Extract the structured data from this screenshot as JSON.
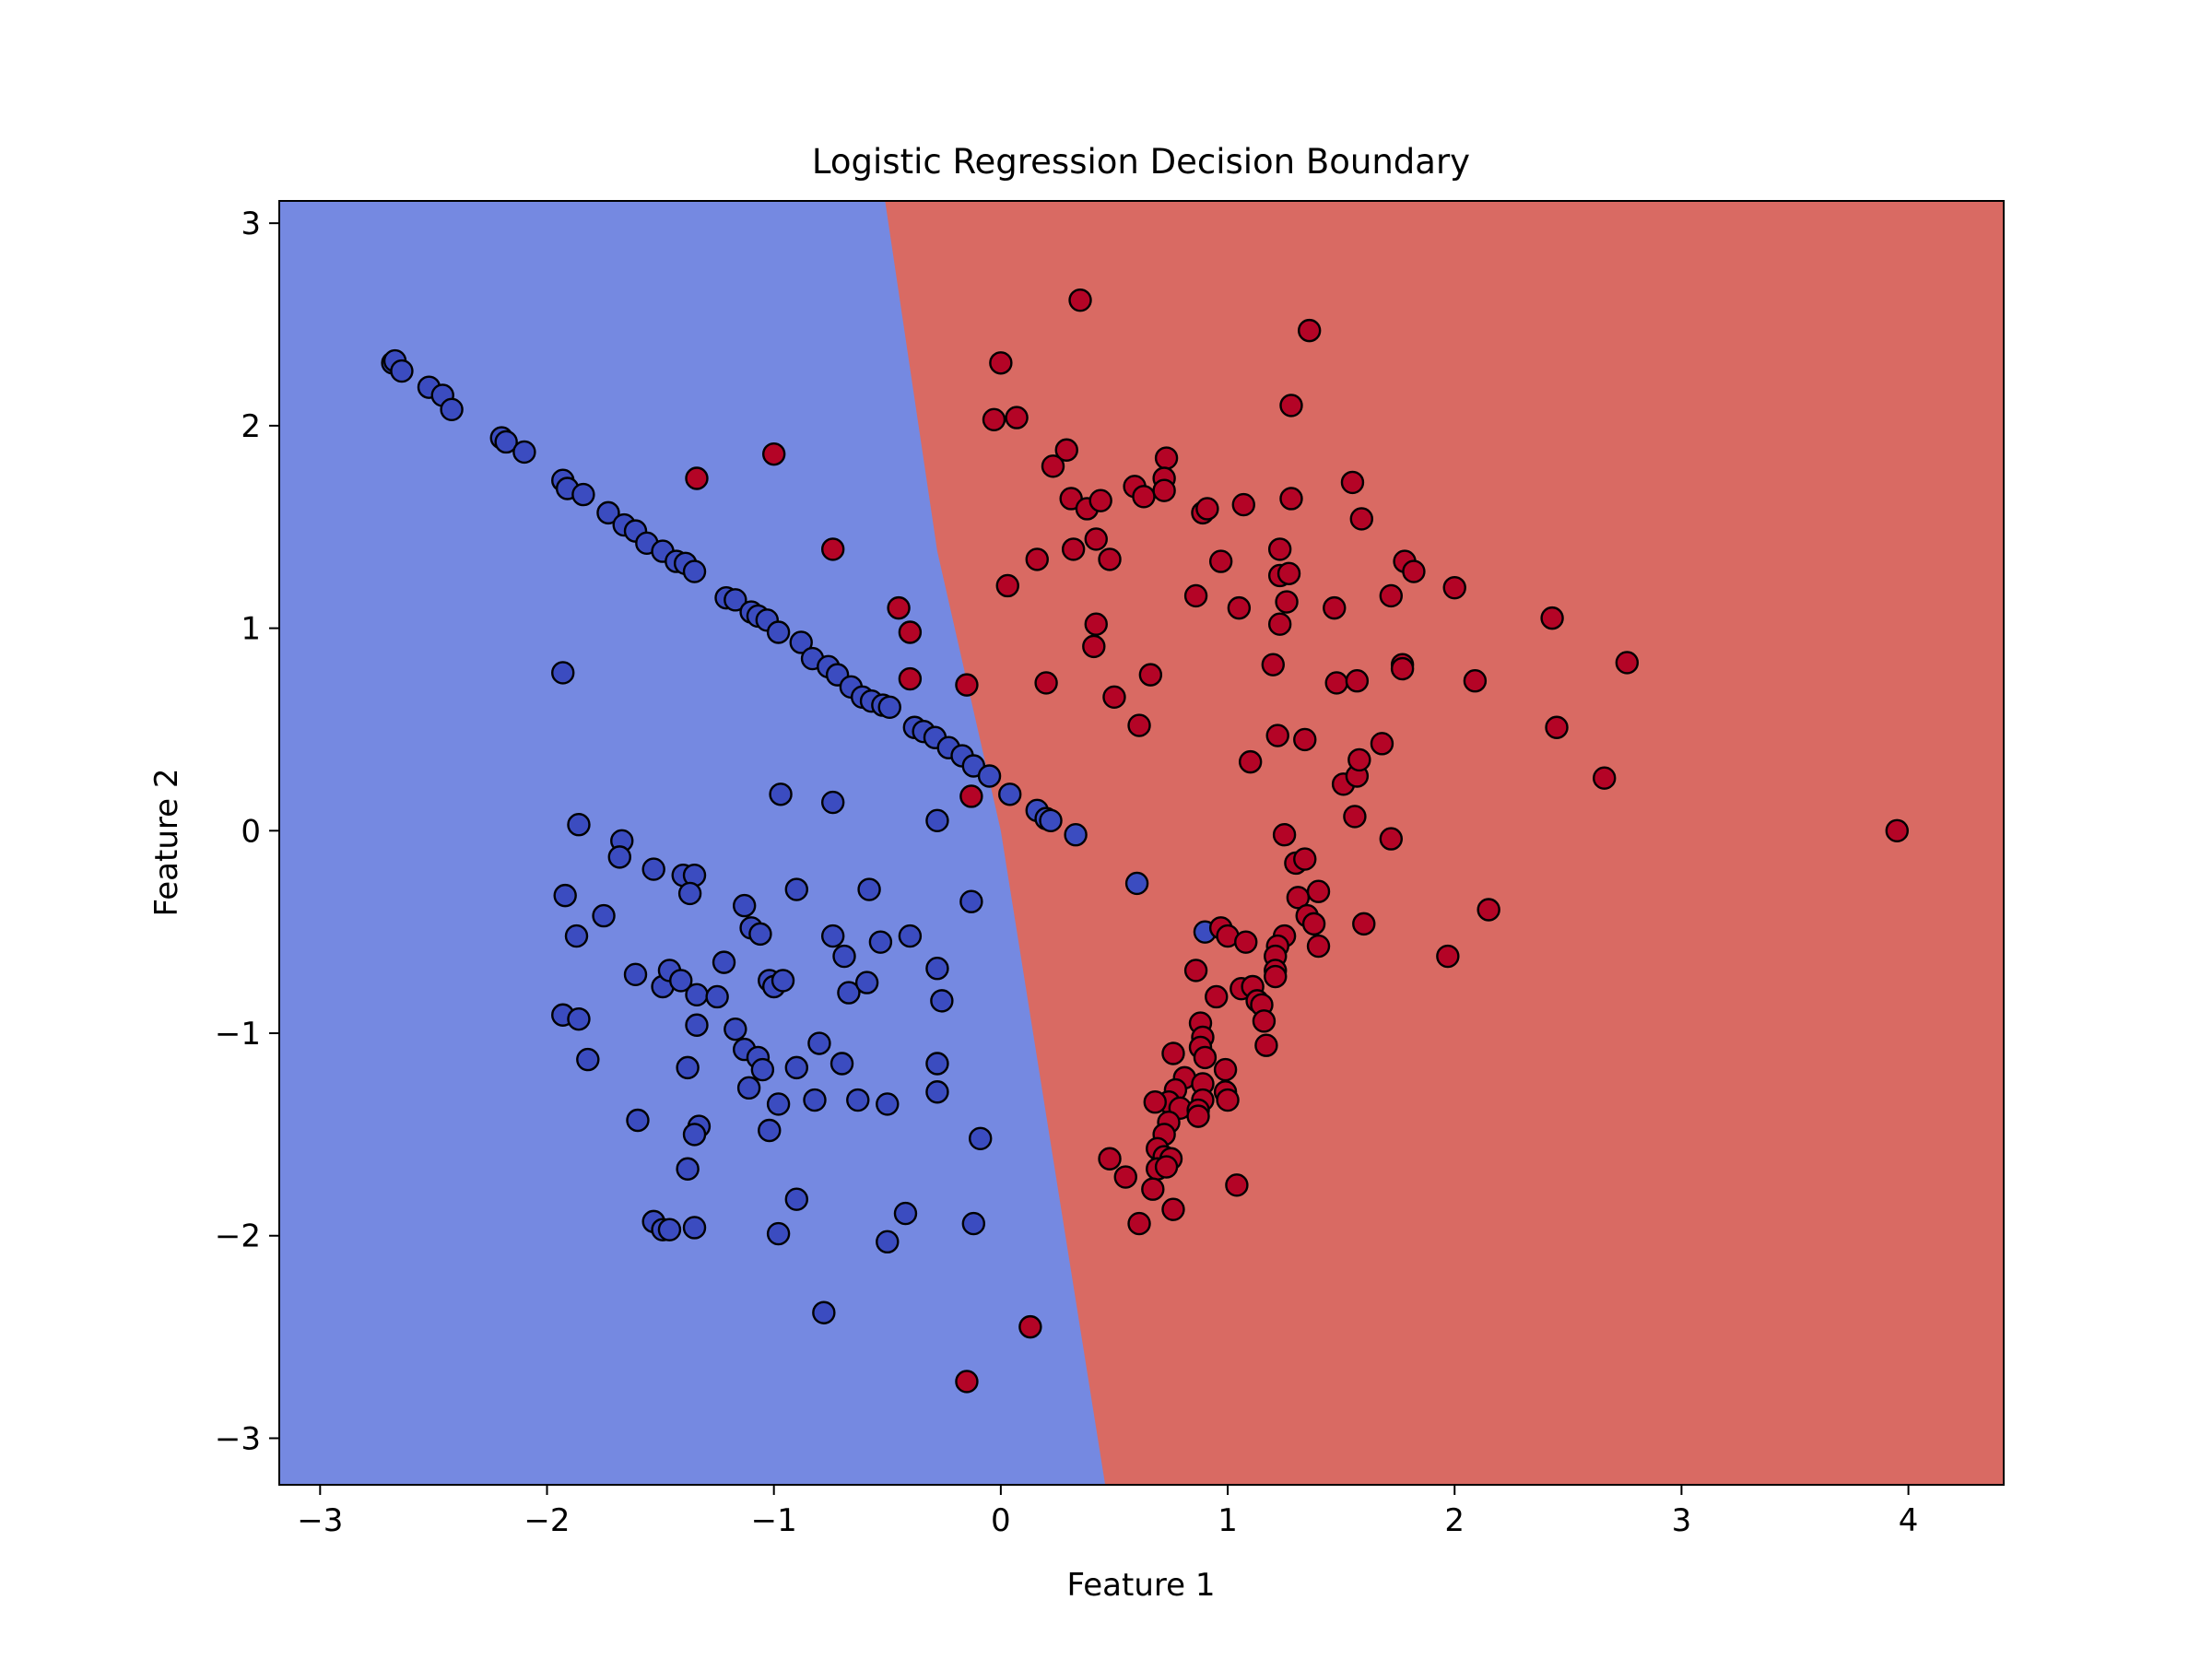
{
  "chart_data": {
    "type": "scatter",
    "title": "Logistic Regression Decision Boundary",
    "xlabel": "Feature 1",
    "ylabel": "Feature 2",
    "xlim": [
      -3.18,
      4.42
    ],
    "ylim": [
      -3.23,
      3.11
    ],
    "xticks": [
      -3,
      -2,
      -1,
      0,
      1,
      2,
      3,
      4
    ],
    "yticks": [
      -3,
      -2,
      -1,
      0,
      1,
      2,
      3
    ],
    "xtick_labels": [
      "−3",
      "−2",
      "−1",
      "0",
      "1",
      "2",
      "3",
      "4"
    ],
    "ytick_labels": [
      "−3",
      "−2",
      "−1",
      "0",
      "1",
      "2",
      "3"
    ],
    "grid": false,
    "legend": "none",
    "colors": {
      "region_class0": "#7589e1",
      "region_class1": "#d96a63",
      "class0": "#3b4cc0",
      "class1": "#b40426",
      "edge": "#000000"
    },
    "decision_boundary": [
      [
        -0.51,
        3.11
      ],
      [
        -0.28,
        1.38
      ],
      [
        0.0,
        0.0
      ],
      [
        0.46,
        -3.23
      ]
    ],
    "series": [
      {
        "class": 0,
        "points": [
          [
            -2.68,
            2.31
          ],
          [
            -2.67,
            2.32
          ],
          [
            -2.64,
            2.27
          ],
          [
            -2.52,
            2.19
          ],
          [
            -2.46,
            2.15
          ],
          [
            -2.42,
            2.08
          ],
          [
            -2.2,
            1.94
          ],
          [
            -2.18,
            1.92
          ],
          [
            -2.1,
            1.87
          ],
          [
            -1.93,
            1.73
          ],
          [
            -1.91,
            1.69
          ],
          [
            -1.84,
            1.66
          ],
          [
            -1.73,
            1.57
          ],
          [
            -1.66,
            1.51
          ],
          [
            -1.61,
            1.48
          ],
          [
            -1.56,
            1.42
          ],
          [
            -1.49,
            1.38
          ],
          [
            -1.43,
            1.33
          ],
          [
            -1.39,
            1.32
          ],
          [
            -1.35,
            1.28
          ],
          [
            -1.21,
            1.15
          ],
          [
            -1.17,
            1.14
          ],
          [
            -1.1,
            1.08
          ],
          [
            -1.07,
            1.06
          ],
          [
            -1.03,
            1.04
          ],
          [
            -0.98,
            0.98
          ],
          [
            -0.88,
            0.93
          ],
          [
            -0.83,
            0.85
          ],
          [
            -0.76,
            0.81
          ],
          [
            -0.72,
            0.77
          ],
          [
            -0.66,
            0.71
          ],
          [
            -0.61,
            0.66
          ],
          [
            -0.57,
            0.64
          ],
          [
            -0.52,
            0.62
          ],
          [
            -0.49,
            0.61
          ],
          [
            -0.38,
            0.51
          ],
          [
            -0.34,
            0.49
          ],
          [
            -0.29,
            0.46
          ],
          [
            -0.23,
            0.41
          ],
          [
            -0.17,
            0.37
          ],
          [
            -0.12,
            0.32
          ],
          [
            -0.05,
            0.27
          ],
          [
            0.04,
            0.18
          ],
          [
            0.16,
            0.1
          ],
          [
            0.2,
            0.06
          ],
          [
            0.22,
            0.05
          ],
          [
            0.33,
            -0.02
          ],
          [
            -1.93,
            0.78
          ],
          [
            -0.97,
            0.18
          ],
          [
            -0.74,
            0.14
          ],
          [
            -0.28,
            0.05
          ],
          [
            -1.86,
            0.03
          ],
          [
            -1.67,
            -0.05
          ],
          [
            -1.68,
            -0.13
          ],
          [
            -1.53,
            -0.19
          ],
          [
            -1.4,
            -0.22
          ],
          [
            -1.35,
            -0.22
          ],
          [
            -1.37,
            -0.31
          ],
          [
            -1.92,
            -0.32
          ],
          [
            -0.9,
            -0.29
          ],
          [
            -0.58,
            -0.29
          ],
          [
            -0.13,
            -0.35
          ],
          [
            -1.13,
            -0.37
          ],
          [
            -1.75,
            -0.42
          ],
          [
            -1.87,
            -0.52
          ],
          [
            -1.1,
            -0.48
          ],
          [
            -1.06,
            -0.51
          ],
          [
            -0.74,
            -0.52
          ],
          [
            -0.53,
            -0.55
          ],
          [
            -0.4,
            -0.52
          ],
          [
            -1.61,
            -0.71
          ],
          [
            -1.49,
            -0.77
          ],
          [
            -1.46,
            -0.69
          ],
          [
            -1.41,
            -0.74
          ],
          [
            -1.34,
            -0.81
          ],
          [
            -1.25,
            -0.82
          ],
          [
            -1.22,
            -0.65
          ],
          [
            -1.02,
            -0.74
          ],
          [
            -1.0,
            -0.77
          ],
          [
            -0.96,
            -0.74
          ],
          [
            -0.69,
            -0.62
          ],
          [
            -0.67,
            -0.8
          ],
          [
            -0.59,
            -0.75
          ],
          [
            -0.28,
            -0.68
          ],
          [
            -0.26,
            -0.84
          ],
          [
            -1.93,
            -0.91
          ],
          [
            -1.86,
            -0.93
          ],
          [
            -1.34,
            -0.96
          ],
          [
            -1.17,
            -0.98
          ],
          [
            -1.13,
            -1.08
          ],
          [
            -1.07,
            -1.12
          ],
          [
            -1.05,
            -1.18
          ],
          [
            -0.9,
            -1.17
          ],
          [
            -0.8,
            -1.05
          ],
          [
            -0.7,
            -1.15
          ],
          [
            -1.82,
            -1.13
          ],
          [
            -1.38,
            -1.17
          ],
          [
            -1.11,
            -1.27
          ],
          [
            -0.98,
            -1.35
          ],
          [
            -0.82,
            -1.33
          ],
          [
            -0.63,
            -1.33
          ],
          [
            -0.5,
            -1.35
          ],
          [
            -0.28,
            -1.29
          ],
          [
            -0.28,
            -1.15
          ],
          [
            -1.6,
            -1.43
          ],
          [
            -1.33,
            -1.46
          ],
          [
            -1.35,
            -1.5
          ],
          [
            -1.02,
            -1.48
          ],
          [
            -0.09,
            -1.52
          ],
          [
            -1.38,
            -1.67
          ],
          [
            -0.9,
            -1.82
          ],
          [
            -1.53,
            -1.93
          ],
          [
            -1.49,
            -1.97
          ],
          [
            -1.46,
            -1.97
          ],
          [
            -1.35,
            -1.96
          ],
          [
            -0.98,
            -1.99
          ],
          [
            -0.42,
            -1.89
          ],
          [
            -0.12,
            -1.94
          ],
          [
            -0.5,
            -2.03
          ],
          [
            -0.78,
            -2.38
          ],
          [
            0.6,
            -0.26
          ],
          [
            0.9,
            -0.5
          ]
        ]
      },
      {
        "class": 1,
        "points": [
          [
            0.35,
            2.62
          ],
          [
            1.36,
            2.47
          ],
          [
            0.0,
            2.31
          ],
          [
            -0.03,
            2.03
          ],
          [
            0.07,
            2.04
          ],
          [
            1.28,
            2.1
          ],
          [
            -1.34,
            1.74
          ],
          [
            -1.0,
            1.86
          ],
          [
            0.29,
            1.88
          ],
          [
            0.23,
            1.8
          ],
          [
            0.73,
            1.84
          ],
          [
            0.59,
            1.7
          ],
          [
            0.63,
            1.65
          ],
          [
            0.72,
            1.74
          ],
          [
            0.72,
            1.68
          ],
          [
            0.31,
            1.64
          ],
          [
            0.38,
            1.59
          ],
          [
            0.44,
            1.63
          ],
          [
            0.89,
            1.57
          ],
          [
            0.91,
            1.59
          ],
          [
            1.07,
            1.61
          ],
          [
            1.28,
            1.64
          ],
          [
            1.55,
            1.72
          ],
          [
            1.59,
            1.54
          ],
          [
            -0.74,
            1.39
          ],
          [
            0.32,
            1.39
          ],
          [
            0.42,
            1.44
          ],
          [
            0.16,
            1.34
          ],
          [
            0.48,
            1.34
          ],
          [
            0.03,
            1.21
          ],
          [
            0.97,
            1.33
          ],
          [
            1.23,
            1.39
          ],
          [
            1.23,
            1.26
          ],
          [
            1.27,
            1.27
          ],
          [
            1.78,
            1.33
          ],
          [
            1.82,
            1.28
          ],
          [
            2.0,
            1.2
          ],
          [
            1.72,
            1.16
          ],
          [
            0.86,
            1.16
          ],
          [
            1.05,
            1.1
          ],
          [
            1.47,
            1.1
          ],
          [
            -0.45,
            1.1
          ],
          [
            -0.4,
            0.98
          ],
          [
            0.42,
            1.02
          ],
          [
            0.41,
            0.91
          ],
          [
            1.23,
            1.02
          ],
          [
            1.26,
            1.13
          ],
          [
            2.43,
            1.05
          ],
          [
            1.2,
            0.82
          ],
          [
            1.77,
            0.82
          ],
          [
            1.77,
            0.8
          ],
          [
            2.76,
            0.83
          ],
          [
            -0.4,
            0.75
          ],
          [
            0.2,
            0.73
          ],
          [
            0.66,
            0.77
          ],
          [
            1.48,
            0.73
          ],
          [
            1.57,
            0.74
          ],
          [
            2.09,
            0.74
          ],
          [
            -0.15,
            0.72
          ],
          [
            0.5,
            0.66
          ],
          [
            0.61,
            0.52
          ],
          [
            1.22,
            0.47
          ],
          [
            1.34,
            0.45
          ],
          [
            1.68,
            0.43
          ],
          [
            2.45,
            0.51
          ],
          [
            1.1,
            0.34
          ],
          [
            1.51,
            0.23
          ],
          [
            1.57,
            0.27
          ],
          [
            1.58,
            0.35
          ],
          [
            2.66,
            0.26
          ],
          [
            -0.13,
            0.17
          ],
          [
            1.56,
            0.07
          ],
          [
            1.72,
            -0.04
          ],
          [
            1.25,
            -0.02
          ],
          [
            1.3,
            -0.16
          ],
          [
            1.34,
            -0.14
          ],
          [
            3.95,
            0.0
          ],
          [
            1.31,
            -0.33
          ],
          [
            1.35,
            -0.42
          ],
          [
            1.4,
            -0.3
          ],
          [
            1.38,
            -0.46
          ],
          [
            2.15,
            -0.39
          ],
          [
            1.6,
            -0.46
          ],
          [
            1.97,
            -0.62
          ],
          [
            0.97,
            -0.48
          ],
          [
            1.0,
            -0.52
          ],
          [
            1.08,
            -0.55
          ],
          [
            1.25,
            -0.52
          ],
          [
            1.22,
            -0.57
          ],
          [
            1.21,
            -0.62
          ],
          [
            1.4,
            -0.57
          ],
          [
            1.21,
            -0.69
          ],
          [
            1.21,
            -0.72
          ],
          [
            0.86,
            -0.69
          ],
          [
            1.06,
            -0.78
          ],
          [
            1.11,
            -0.77
          ],
          [
            1.13,
            -0.84
          ],
          [
            1.15,
            -0.86
          ],
          [
            1.16,
            -0.94
          ],
          [
            1.17,
            -1.06
          ],
          [
            0.95,
            -0.82
          ],
          [
            0.88,
            -0.95
          ],
          [
            0.89,
            -1.02
          ],
          [
            0.88,
            -1.07
          ],
          [
            0.9,
            -1.12
          ],
          [
            0.76,
            -1.1
          ],
          [
            0.81,
            -1.22
          ],
          [
            0.77,
            -1.28
          ],
          [
            0.89,
            -1.25
          ],
          [
            0.89,
            -1.33
          ],
          [
            0.99,
            -1.18
          ],
          [
            0.99,
            -1.29
          ],
          [
            1.0,
            -1.33
          ],
          [
            0.74,
            -1.34
          ],
          [
            0.68,
            -1.34
          ],
          [
            0.79,
            -1.37
          ],
          [
            0.87,
            -1.38
          ],
          [
            0.87,
            -1.41
          ],
          [
            0.74,
            -1.44
          ],
          [
            0.72,
            -1.5
          ],
          [
            0.69,
            -1.57
          ],
          [
            0.72,
            -1.61
          ],
          [
            0.75,
            -1.62
          ],
          [
            0.69,
            -1.67
          ],
          [
            0.73,
            -1.66
          ],
          [
            0.67,
            -1.77
          ],
          [
            0.48,
            -1.62
          ],
          [
            0.55,
            -1.71
          ],
          [
            0.76,
            -1.87
          ],
          [
            0.61,
            -1.94
          ],
          [
            1.04,
            -1.75
          ],
          [
            0.13,
            -2.45
          ],
          [
            -0.15,
            -2.72
          ]
        ]
      }
    ]
  }
}
